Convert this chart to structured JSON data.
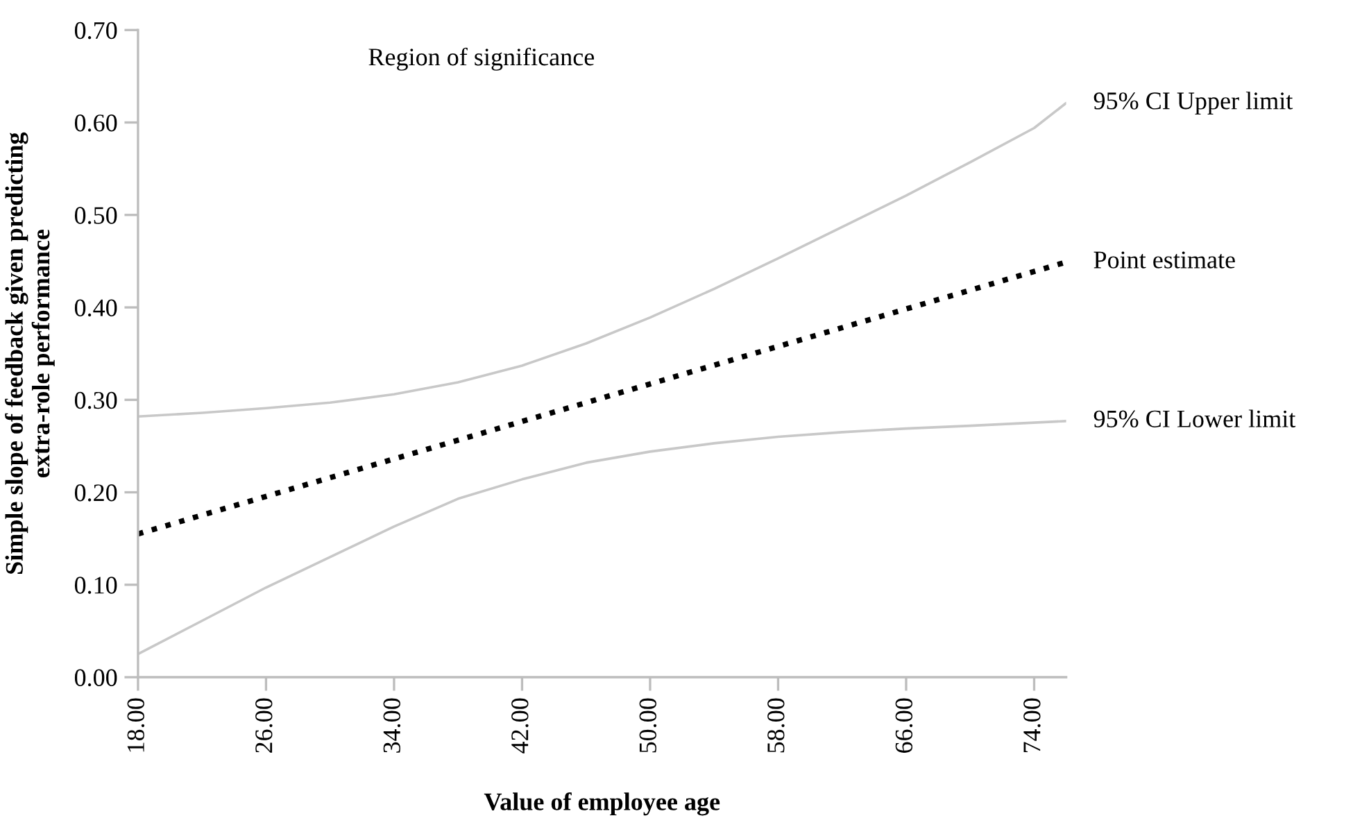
{
  "chart_data": {
    "type": "line",
    "xlabel": "Value of employee age",
    "ylabel": "Simple slope of feedback given predicting\nextra-role performance",
    "annotations": [
      "Region of significance"
    ],
    "series": [
      {
        "name": "95% CI Upper limit",
        "color": "#c8c8c8",
        "line_style": "solid",
        "x": [
          18,
          22,
          26,
          30,
          34,
          38,
          42,
          46,
          50,
          54,
          58,
          62,
          66,
          70,
          74,
          76
        ],
        "values": [
          0.282,
          0.286,
          0.291,
          0.297,
          0.306,
          0.319,
          0.337,
          0.361,
          0.389,
          0.42,
          0.453,
          0.487,
          0.521,
          0.557,
          0.594,
          0.621
        ]
      },
      {
        "name": "Point estimate",
        "color": "#000000",
        "line_style": "dotted",
        "x": [
          18,
          76
        ],
        "values": [
          0.155,
          0.449
        ]
      },
      {
        "name": "95% CI Lower limit",
        "color": "#c8c8c8",
        "line_style": "solid",
        "x": [
          18,
          22,
          26,
          30,
          34,
          38,
          42,
          46,
          50,
          54,
          58,
          62,
          66,
          70,
          76
        ],
        "values": [
          0.025,
          0.061,
          0.097,
          0.13,
          0.163,
          0.193,
          0.214,
          0.232,
          0.244,
          0.253,
          0.26,
          0.265,
          0.269,
          0.272,
          0.277
        ]
      }
    ],
    "xlim": [
      18,
      76
    ],
    "xticks": [
      {
        "value": 18,
        "label": "18.00"
      },
      {
        "value": 26,
        "label": "26.00"
      },
      {
        "value": 34,
        "label": "34.00"
      },
      {
        "value": 42,
        "label": "42.00"
      },
      {
        "value": 50,
        "label": "50.00"
      },
      {
        "value": 58,
        "label": "58.00"
      },
      {
        "value": 66,
        "label": "66.00"
      },
      {
        "value": 74,
        "label": "74.00"
      }
    ],
    "ylim": [
      0,
      0.7
    ],
    "yticks": [
      {
        "value": 0,
        "label": "0.00"
      },
      {
        "value": 0.1,
        "label": "0.10"
      },
      {
        "value": 0.2,
        "label": "0.20"
      },
      {
        "value": 0.3,
        "label": "0.30"
      },
      {
        "value": 0.4,
        "label": "0.40"
      },
      {
        "value": 0.5,
        "label": "0.50"
      },
      {
        "value": 0.6,
        "label": "0.60"
      },
      {
        "value": 0.7,
        "label": "0.70"
      }
    ],
    "grid": false
  }
}
